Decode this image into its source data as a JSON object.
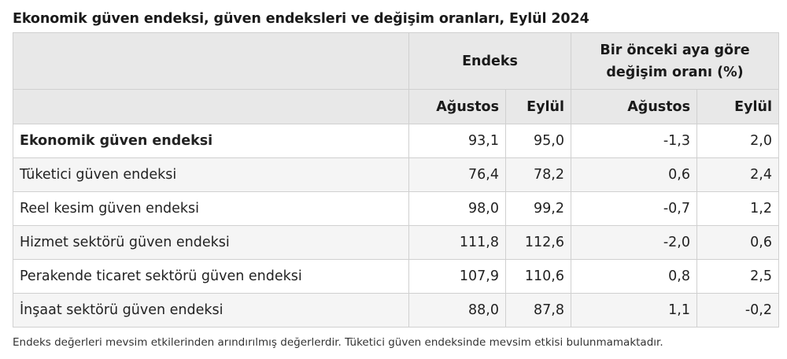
{
  "title": "Ekonomik güven endeksi, güven endeksleri ve değişim oranları, Eylül 2024",
  "table": {
    "group_headers": [
      "Endeks",
      "Bir önceki aya göre değişim oranı (%)"
    ],
    "sub_headers": [
      "Ağustos",
      "Eylül",
      "Ağustos",
      "Eylül"
    ],
    "rows": [
      {
        "label": "Ekonomik güven endeksi",
        "values": [
          "93,1",
          "95,0",
          "-1,3",
          "2,0"
        ]
      },
      {
        "label": "Tüketici güven endeksi",
        "values": [
          "76,4",
          "78,2",
          "0,6",
          "2,4"
        ]
      },
      {
        "label": "Reel kesim güven endeksi",
        "values": [
          "98,0",
          "99,2",
          "-0,7",
          "1,2"
        ]
      },
      {
        "label": "Hizmet sektörü güven endeksi",
        "values": [
          "111,8",
          "112,6",
          "-2,0",
          "0,6"
        ]
      },
      {
        "label": "Perakende ticaret sektörü güven endeksi",
        "values": [
          "107,9",
          "110,6",
          "0,8",
          "2,5"
        ]
      },
      {
        "label": "İnşaat sektörü güven endeksi",
        "values": [
          "88,0",
          "87,8",
          "1,1",
          "-0,2"
        ]
      }
    ]
  },
  "footnote": "Endeks değerleri mevsim etkilerinden arındırılmış değerlerdir. Tüketici güven endeksinde mevsim etkisi bulunmamaktadır."
}
